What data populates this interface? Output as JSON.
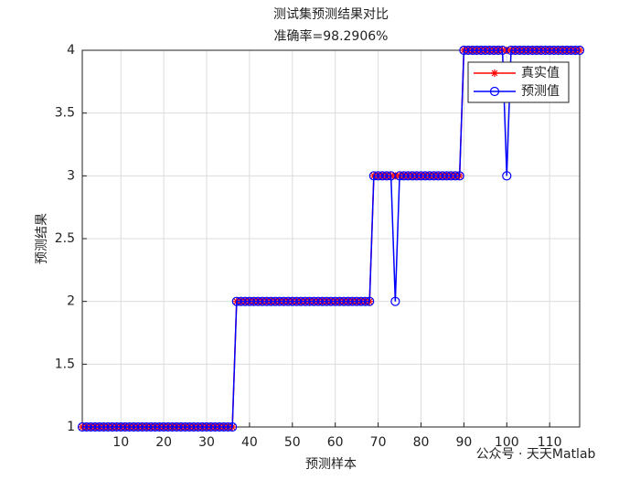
{
  "chart_data": {
    "type": "line",
    "title": "测试集预测结果对比",
    "subtitle": "准确率=98.2906%",
    "x_label": "预测样本",
    "y_label": "预测结果",
    "annotation": "公众号 · 天天Matlab",
    "x": [
      1,
      2,
      3,
      4,
      5,
      6,
      7,
      8,
      9,
      10,
      11,
      12,
      13,
      14,
      15,
      16,
      17,
      18,
      19,
      20,
      21,
      22,
      23,
      24,
      25,
      26,
      27,
      28,
      29,
      30,
      31,
      32,
      33,
      34,
      35,
      36,
      37,
      38,
      39,
      40,
      41,
      42,
      43,
      44,
      45,
      46,
      47,
      48,
      49,
      50,
      51,
      52,
      53,
      54,
      55,
      56,
      57,
      58,
      59,
      60,
      61,
      62,
      63,
      64,
      65,
      66,
      67,
      68,
      69,
      70,
      71,
      72,
      73,
      74,
      75,
      76,
      77,
      78,
      79,
      80,
      81,
      82,
      83,
      84,
      85,
      86,
      87,
      88,
      89,
      90,
      91,
      92,
      93,
      94,
      95,
      96,
      97,
      98,
      99,
      100,
      101,
      102,
      103,
      104,
      105,
      106,
      107,
      108,
      109,
      110,
      111,
      112,
      113,
      114,
      115,
      116,
      117
    ],
    "series": [
      {
        "name": "真实值",
        "color": "#ff0000",
        "marker": "star",
        "values": [
          1,
          1,
          1,
          1,
          1,
          1,
          1,
          1,
          1,
          1,
          1,
          1,
          1,
          1,
          1,
          1,
          1,
          1,
          1,
          1,
          1,
          1,
          1,
          1,
          1,
          1,
          1,
          1,
          1,
          1,
          1,
          1,
          1,
          1,
          1,
          1,
          2,
          2,
          2,
          2,
          2,
          2,
          2,
          2,
          2,
          2,
          2,
          2,
          2,
          2,
          2,
          2,
          2,
          2,
          2,
          2,
          2,
          2,
          2,
          2,
          2,
          2,
          2,
          2,
          2,
          2,
          2,
          2,
          3,
          3,
          3,
          3,
          3,
          3,
          3,
          3,
          3,
          3,
          3,
          3,
          3,
          3,
          3,
          3,
          3,
          3,
          3,
          3,
          3,
          4,
          4,
          4,
          4,
          4,
          4,
          4,
          4,
          4,
          4,
          4,
          4,
          4,
          4,
          4,
          4,
          4,
          4,
          4,
          4,
          4,
          4,
          4,
          4,
          4,
          4,
          4,
          4
        ]
      },
      {
        "name": "预测值",
        "color": "#0000ff",
        "marker": "circle",
        "values": [
          1,
          1,
          1,
          1,
          1,
          1,
          1,
          1,
          1,
          1,
          1,
          1,
          1,
          1,
          1,
          1,
          1,
          1,
          1,
          1,
          1,
          1,
          1,
          1,
          1,
          1,
          1,
          1,
          1,
          1,
          1,
          1,
          1,
          1,
          1,
          1,
          2,
          2,
          2,
          2,
          2,
          2,
          2,
          2,
          2,
          2,
          2,
          2,
          2,
          2,
          2,
          2,
          2,
          2,
          2,
          2,
          2,
          2,
          2,
          2,
          2,
          2,
          2,
          2,
          2,
          2,
          2,
          2,
          3,
          3,
          3,
          3,
          3,
          2,
          3,
          3,
          3,
          3,
          3,
          3,
          3,
          3,
          3,
          3,
          3,
          3,
          3,
          3,
          3,
          4,
          4,
          4,
          4,
          4,
          4,
          4,
          4,
          4,
          4,
          3,
          4,
          4,
          4,
          4,
          4,
          4,
          4,
          4,
          4,
          4,
          4,
          4,
          4,
          4,
          4,
          4,
          4
        ]
      }
    ],
    "xlim": [
      1,
      117
    ],
    "ylim": [
      1,
      4
    ],
    "xticks": [
      10,
      20,
      30,
      40,
      50,
      60,
      70,
      80,
      90,
      100,
      110
    ],
    "yticks": [
      1,
      1.5,
      2,
      2.5,
      3,
      3.5,
      4
    ],
    "grid": true,
    "legend": "northeast"
  }
}
